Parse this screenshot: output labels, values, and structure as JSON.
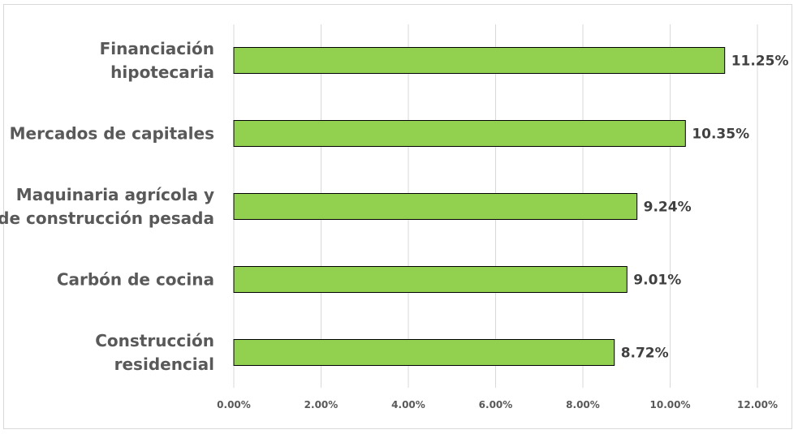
{
  "chart_data": {
    "type": "bar",
    "orientation": "horizontal",
    "categories": [
      [
        "Financiación",
        "hipotecaria"
      ],
      [
        "Mercados de capitales"
      ],
      [
        "Maquinaria agrícola y",
        "de construcción pesada"
      ],
      [
        "Carbón de cocina"
      ],
      [
        "Construcción",
        "residencial"
      ]
    ],
    "values": [
      11.25,
      10.35,
      9.24,
      9.01,
      8.72
    ],
    "value_labels": [
      "11.25%",
      "10.35%",
      "9.24%",
      "9.01%",
      "8.72%"
    ],
    "xlim": [
      0,
      12
    ],
    "x_ticks": [
      0,
      2,
      4,
      6,
      8,
      10,
      12
    ],
    "x_tick_labels": [
      "0.00%",
      "2.00%",
      "4.00%",
      "6.00%",
      "8.00%",
      "10.00%",
      "12.00%"
    ],
    "grid": true,
    "legend": false,
    "bar_color": "#92d050",
    "bar_edge_color": "#000000",
    "gridline_color": "#d9d9d9",
    "text_color": "#595959",
    "data_label_color": "#404040"
  }
}
